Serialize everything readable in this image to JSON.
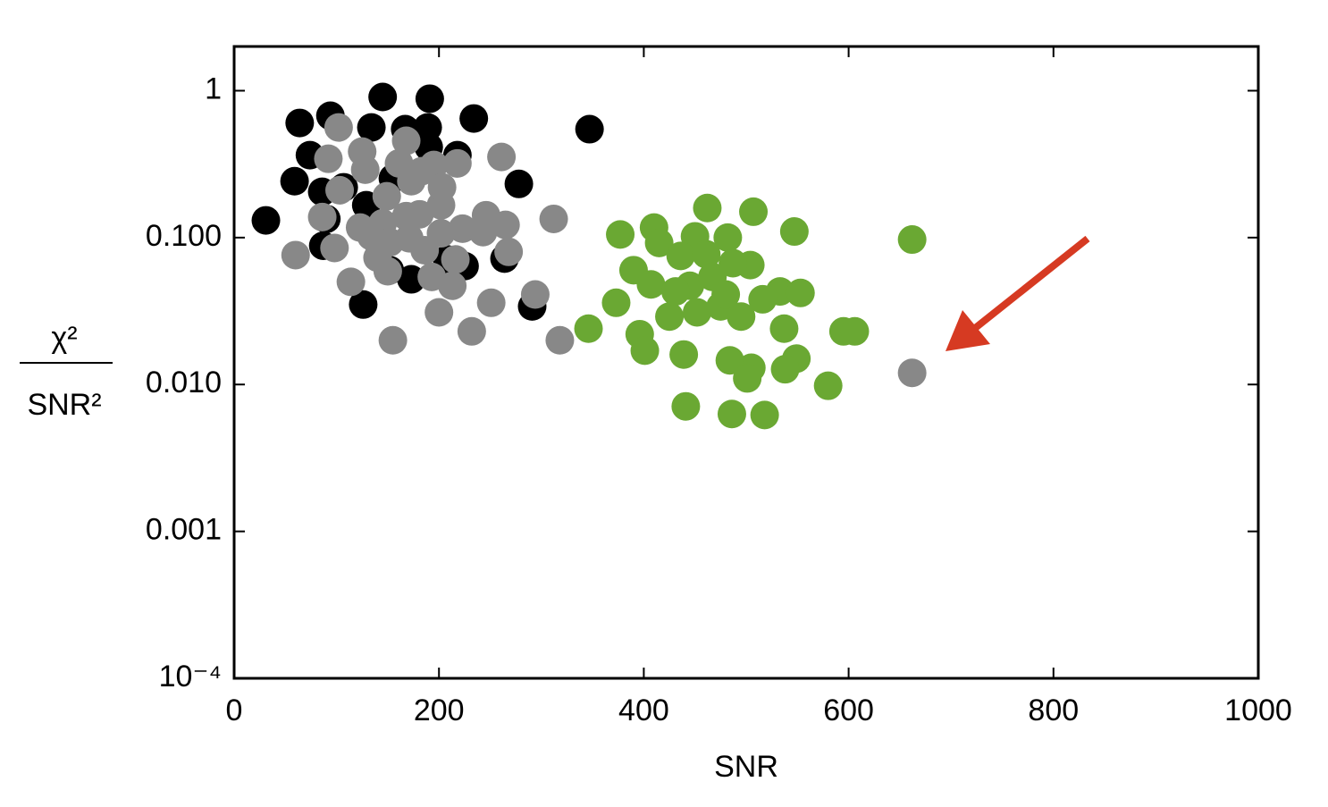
{
  "chart_data": {
    "type": "scatter",
    "x_label": "SNR",
    "y_label": {
      "numerator": "χ²",
      "denominator": "SNR²"
    },
    "xlim": [
      0,
      1000
    ],
    "xticks": [
      0,
      200,
      400,
      600,
      800,
      1000
    ],
    "ylim": [
      0.0001,
      2
    ],
    "y_scale": "log",
    "yticks": [
      {
        "value": 0.0001,
        "label": "10⁻⁴"
      },
      {
        "value": 0.001,
        "label": "0.001"
      },
      {
        "value": 0.01,
        "label": "0.010"
      },
      {
        "value": 0.1,
        "label": "0.100"
      },
      1
    ],
    "series": [
      {
        "color": "#000000",
        "x": [
          31,
          64,
          94,
          59,
          74,
          134,
          145,
          167,
          191,
          189,
          234,
          278,
          347,
          291,
          264,
          126,
          90,
          87,
          152,
          173,
          218,
          208,
          225,
          129,
          107,
          190,
          155,
          86
        ],
        "values": [
          0.131,
          0.603,
          0.675,
          0.242,
          0.364,
          0.562,
          0.906,
          0.547,
          0.882,
          0.562,
          0.647,
          0.232,
          0.547,
          0.034,
          0.072,
          0.035,
          0.134,
          0.088,
          0.06,
          0.052,
          0.364,
          0.071,
          0.064,
          0.166,
          0.22,
          0.413,
          0.253,
          0.205
        ]
      },
      {
        "color": "#888888",
        "x": [
          662,
          60,
          102,
          92,
          125,
          128,
          86,
          103,
          123,
          149,
          168,
          161,
          173,
          183,
          195,
          218,
          202,
          168,
          145,
          152,
          140,
          171,
          202,
          223,
          246,
          261,
          265,
          268,
          312,
          294,
          318,
          251,
          232,
          200,
          213,
          193,
          150,
          155,
          114,
          98,
          134,
          186,
          216,
          243,
          181,
          203
        ],
        "values": [
          0.012,
          0.076,
          0.562,
          0.344,
          0.385,
          0.29,
          0.138,
          0.21,
          0.117,
          0.191,
          0.456,
          0.32,
          0.242,
          0.283,
          0.312,
          0.32,
          0.166,
          0.14,
          0.125,
          0.093,
          0.073,
          0.099,
          0.107,
          0.115,
          0.142,
          0.354,
          0.122,
          0.08,
          0.134,
          0.041,
          0.02,
          0.036,
          0.023,
          0.031,
          0.047,
          0.054,
          0.059,
          0.02,
          0.05,
          0.085,
          0.102,
          0.082,
          0.071,
          0.109,
          0.144,
          0.22
        ]
      },
      {
        "color": "#6aa833",
        "x": [
          662,
          377,
          410,
          415,
          462,
          507,
          547,
          450,
          482,
          504,
          390,
          436,
          461,
          487,
          533,
          373,
          407,
          445,
          467,
          516,
          553,
          595,
          346,
          396,
          425,
          452,
          475,
          495,
          537,
          549,
          505,
          401,
          439,
          484,
          501,
          538,
          580,
          486,
          441,
          518,
          606,
          480,
          431
        ],
        "values": [
          0.097,
          0.105,
          0.117,
          0.092,
          0.159,
          0.15,
          0.11,
          0.102,
          0.1,
          0.065,
          0.06,
          0.075,
          0.077,
          0.067,
          0.043,
          0.036,
          0.048,
          0.047,
          0.054,
          0.038,
          0.042,
          0.023,
          0.024,
          0.022,
          0.029,
          0.031,
          0.034,
          0.029,
          0.024,
          0.015,
          0.013,
          0.017,
          0.016,
          0.0146,
          0.011,
          0.0127,
          0.0098,
          0.0063,
          0.0071,
          0.0062,
          0.023,
          0.041,
          0.043
        ]
      }
    ]
  }
}
